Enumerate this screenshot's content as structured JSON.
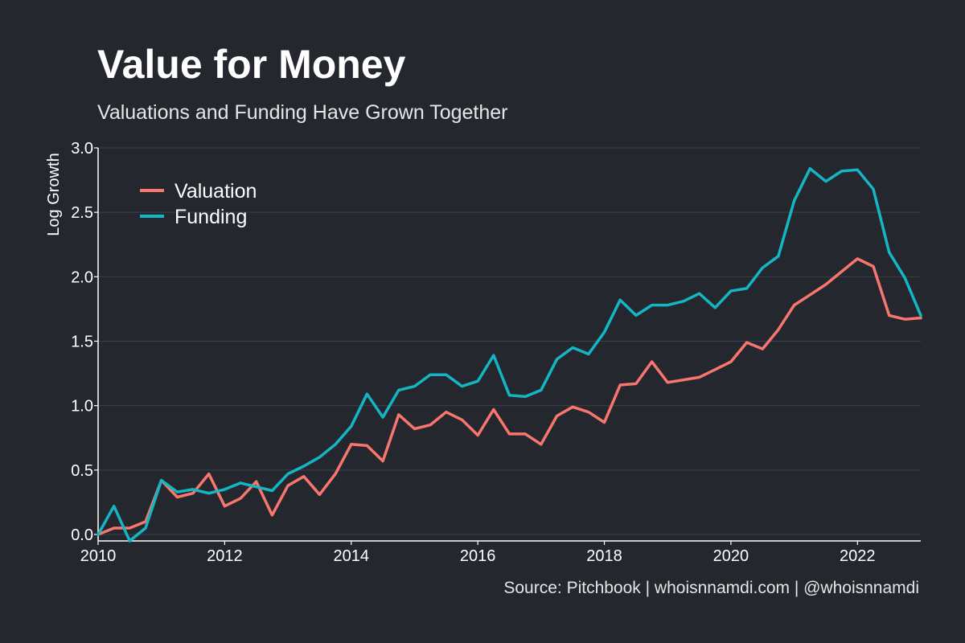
{
  "colors": {
    "background": "#24272e",
    "valuation": "#f8766d",
    "funding": "#15b6c4",
    "grid": "#3c4049",
    "text": "#ffffff"
  },
  "chart_data": {
    "type": "line",
    "title": "Value for Money",
    "subtitle": "Valuations and Funding Have Grown Together",
    "xlabel": "",
    "ylabel": "Log Growth",
    "xlim": [
      2010,
      2023
    ],
    "ylim": [
      -0.05,
      3.0
    ],
    "x_ticks": [
      2010,
      2012,
      2014,
      2016,
      2018,
      2020,
      2022
    ],
    "x_tick_labels": [
      "2010",
      "2012",
      "2014",
      "2016",
      "2018",
      "2020",
      "2022"
    ],
    "y_ticks": [
      0.0,
      0.5,
      1.0,
      1.5,
      2.0,
      2.5,
      3.0
    ],
    "y_tick_labels": [
      "0.0",
      "0.5",
      "1.0",
      "1.5",
      "2.0",
      "2.5",
      "3.0"
    ],
    "grid": true,
    "legend_position": "top-left",
    "x": [
      2010.0,
      2010.25,
      2010.5,
      2010.75,
      2011.0,
      2011.25,
      2011.5,
      2011.75,
      2012.0,
      2012.25,
      2012.5,
      2012.75,
      2013.0,
      2013.25,
      2013.5,
      2013.75,
      2014.0,
      2014.25,
      2014.5,
      2014.75,
      2015.0,
      2015.25,
      2015.5,
      2015.75,
      2016.0,
      2016.25,
      2016.5,
      2016.75,
      2017.0,
      2017.25,
      2017.5,
      2017.75,
      2018.0,
      2018.25,
      2018.5,
      2018.75,
      2019.0,
      2019.25,
      2019.5,
      2019.75,
      2020.0,
      2020.25,
      2020.5,
      2020.75,
      2021.0,
      2021.25,
      2021.5,
      2021.75,
      2022.0,
      2022.25,
      2022.5,
      2022.75,
      2023.0
    ],
    "series": [
      {
        "name": "Valuation",
        "color": "#f8766d",
        "values": [
          0.0,
          0.05,
          0.05,
          0.1,
          0.42,
          0.29,
          0.32,
          0.47,
          0.22,
          0.28,
          0.41,
          0.15,
          0.38,
          0.45,
          0.31,
          0.47,
          0.7,
          0.69,
          0.57,
          0.93,
          0.82,
          0.85,
          0.95,
          0.89,
          0.77,
          0.97,
          0.78,
          0.78,
          0.7,
          0.92,
          0.99,
          0.95,
          0.87,
          1.16,
          1.17,
          1.34,
          1.18,
          1.2,
          1.22,
          1.28,
          1.34,
          1.49,
          1.44,
          1.59,
          1.78,
          1.86,
          1.94,
          2.04,
          2.14,
          2.08,
          1.7,
          1.67,
          1.68
        ]
      },
      {
        "name": "Funding",
        "color": "#15b6c4",
        "values": [
          0.0,
          0.22,
          -0.05,
          0.05,
          0.42,
          0.33,
          0.35,
          0.32,
          0.35,
          0.4,
          0.37,
          0.34,
          0.47,
          0.53,
          0.6,
          0.7,
          0.84,
          1.09,
          0.91,
          1.12,
          1.15,
          1.24,
          1.24,
          1.15,
          1.19,
          1.39,
          1.08,
          1.07,
          1.12,
          1.36,
          1.45,
          1.4,
          1.57,
          1.82,
          1.7,
          1.78,
          1.78,
          1.81,
          1.87,
          1.76,
          1.89,
          1.91,
          2.07,
          2.16,
          2.59,
          2.84,
          2.74,
          2.82,
          2.83,
          2.68,
          2.19,
          1.99,
          1.7
        ]
      }
    ]
  },
  "source": "Source: Pitchbook | whoisnnamdi.com | @whoisnnamdi"
}
